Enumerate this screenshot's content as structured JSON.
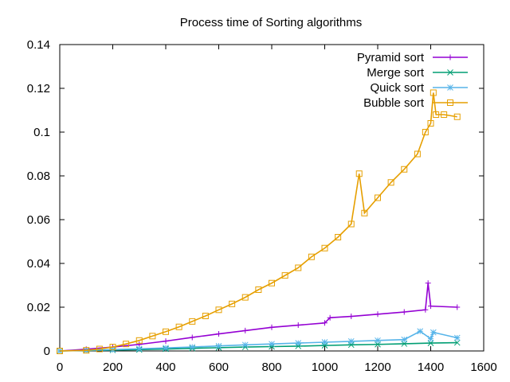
{
  "chart_data": {
    "type": "scatter",
    "title": "Process time of Sorting algorithms",
    "xlabel": "",
    "ylabel": "",
    "xlim": [
      0,
      1600
    ],
    "ylim": [
      0,
      0.14
    ],
    "grid": false,
    "legend_position": "top-right",
    "x_ticks": [
      0,
      200,
      400,
      600,
      800,
      1000,
      1200,
      1400,
      1600
    ],
    "y_ticks": [
      "0",
      "0.02",
      "0.04",
      "0.06",
      "0.08",
      "0.1",
      "0.12",
      "0.14"
    ],
    "y_tick_values": [
      0,
      0.02,
      0.04,
      0.06,
      0.08,
      0.1,
      0.12,
      0.14
    ],
    "series": [
      {
        "name": "Pyramid sort",
        "color": "#9400d3",
        "marker": "plus",
        "x": [
          0,
          100,
          200,
          300,
          400,
          500,
          600,
          700,
          800,
          900,
          1000,
          1020,
          1100,
          1200,
          1300,
          1380,
          1390,
          1400,
          1500
        ],
        "y": [
          0,
          0.0008,
          0.0018,
          0.003,
          0.0045,
          0.0062,
          0.0078,
          0.0093,
          0.0108,
          0.0118,
          0.0128,
          0.0152,
          0.0158,
          0.0168,
          0.0178,
          0.0188,
          0.031,
          0.0205,
          0.02
        ]
      },
      {
        "name": "Merge sort",
        "color": "#009e73",
        "marker": "cross",
        "x": [
          0,
          100,
          200,
          300,
          400,
          500,
          600,
          700,
          800,
          900,
          1000,
          1100,
          1200,
          1300,
          1400,
          1500
        ],
        "y": [
          0,
          0.0002,
          0.0004,
          0.0006,
          0.0009,
          0.0012,
          0.0015,
          0.0018,
          0.002,
          0.0022,
          0.0025,
          0.0028,
          0.003,
          0.0033,
          0.0036,
          0.0038
        ]
      },
      {
        "name": "Quick sort",
        "color": "#56b4e9",
        "marker": "star",
        "x": [
          0,
          100,
          200,
          300,
          400,
          500,
          600,
          700,
          800,
          900,
          1000,
          1100,
          1200,
          1300,
          1360,
          1400,
          1410,
          1500
        ],
        "y": [
          0,
          0.0003,
          0.0006,
          0.001,
          0.0014,
          0.0018,
          0.0023,
          0.0028,
          0.0032,
          0.0036,
          0.004,
          0.0044,
          0.0048,
          0.0052,
          0.009,
          0.0056,
          0.0085,
          0.006
        ]
      },
      {
        "name": "Bubble sort",
        "color": "#e69f00",
        "marker": "square",
        "x": [
          0,
          100,
          150,
          200,
          250,
          300,
          350,
          400,
          450,
          500,
          550,
          600,
          650,
          700,
          750,
          800,
          850,
          900,
          950,
          1000,
          1050,
          1100,
          1130,
          1150,
          1200,
          1250,
          1300,
          1350,
          1380,
          1400,
          1410,
          1420,
          1450,
          1500
        ],
        "y": [
          0,
          0.0003,
          0.0009,
          0.0018,
          0.0032,
          0.0048,
          0.0068,
          0.0088,
          0.011,
          0.0135,
          0.016,
          0.0188,
          0.0215,
          0.0245,
          0.028,
          0.031,
          0.0345,
          0.038,
          0.043,
          0.047,
          0.052,
          0.058,
          0.081,
          0.063,
          0.07,
          0.077,
          0.083,
          0.09,
          0.1,
          0.104,
          0.118,
          0.108,
          0.108,
          0.107
        ]
      }
    ]
  }
}
